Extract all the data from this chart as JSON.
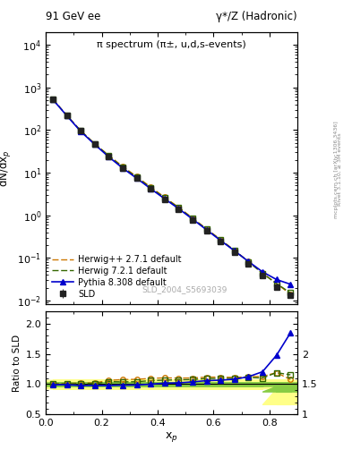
{
  "title_left": "91 GeV ee",
  "title_right": "γ*/Z (Hadronic)",
  "plot_title": "π spectrum (π±, u,d,s-events)",
  "ylabel_main": "dN/dx_p",
  "ylabel_ratio": "Ratio to SLD",
  "xlabel": "x_p",
  "watermark": "SLD_2004_S5693039",
  "right_label": "Rivet 3.1.10, ≥ 3M events",
  "right_label2": "mcplots.cern.ch [arXiv:1306.3436]",
  "xp": [
    0.025,
    0.075,
    0.125,
    0.175,
    0.225,
    0.275,
    0.325,
    0.375,
    0.425,
    0.475,
    0.525,
    0.575,
    0.625,
    0.675,
    0.725,
    0.775,
    0.825,
    0.875
  ],
  "sld_y": [
    530,
    220,
    95,
    47,
    24,
    13,
    7.5,
    4.2,
    2.4,
    1.4,
    0.78,
    0.43,
    0.24,
    0.135,
    0.073,
    0.039,
    0.021,
    0.013
  ],
  "sld_yerr": [
    20,
    8,
    3.5,
    1.8,
    0.9,
    0.5,
    0.29,
    0.16,
    0.09,
    0.053,
    0.029,
    0.016,
    0.009,
    0.005,
    0.003,
    0.0015,
    0.0008,
    0.0005
  ],
  "herwig_pp_y": [
    535,
    222,
    97,
    48,
    25.5,
    14.0,
    8.1,
    4.6,
    2.65,
    1.54,
    0.86,
    0.48,
    0.268,
    0.15,
    0.082,
    0.044,
    0.025,
    0.014
  ],
  "herwig7_y": [
    533,
    221,
    96,
    47.5,
    25.0,
    13.5,
    7.8,
    4.45,
    2.56,
    1.5,
    0.84,
    0.47,
    0.263,
    0.148,
    0.081,
    0.043,
    0.025,
    0.015
  ],
  "pythia_y": [
    525,
    218,
    93,
    46.0,
    23.5,
    12.8,
    7.4,
    4.2,
    2.44,
    1.43,
    0.81,
    0.455,
    0.256,
    0.146,
    0.082,
    0.047,
    0.031,
    0.024
  ],
  "sld_color": "#222222",
  "herwig_pp_color": "#cc7700",
  "herwig7_color": "#336600",
  "pythia_color": "#0000cc",
  "band_green_lo": [
    0.97,
    0.97,
    0.97,
    0.97,
    0.97,
    0.97,
    0.97,
    0.97,
    0.97,
    0.97,
    0.97,
    0.97,
    0.97,
    0.97,
    0.97,
    0.97,
    0.88,
    0.88
  ],
  "band_green_hi": [
    1.03,
    1.03,
    1.03,
    1.03,
    1.03,
    1.03,
    1.03,
    1.03,
    1.03,
    1.03,
    1.03,
    1.03,
    1.03,
    1.03,
    1.03,
    1.03,
    1.03,
    1.03
  ],
  "band_yellow_lo": [
    0.93,
    0.93,
    0.93,
    0.93,
    0.93,
    0.93,
    0.93,
    0.93,
    0.93,
    0.93,
    0.93,
    0.93,
    0.93,
    0.93,
    0.93,
    0.93,
    0.67,
    0.67
  ],
  "band_yellow_hi": [
    1.07,
    1.07,
    1.07,
    1.07,
    1.07,
    1.07,
    1.07,
    1.07,
    1.07,
    1.07,
    1.07,
    1.07,
    1.07,
    1.07,
    1.07,
    1.07,
    1.07,
    1.07
  ],
  "xlim": [
    0.0,
    0.9
  ],
  "ylim_main_lo": 0.008,
  "ylim_main_hi": 20000,
  "ylim_ratio_lo": 0.5,
  "ylim_ratio_hi": 2.2
}
